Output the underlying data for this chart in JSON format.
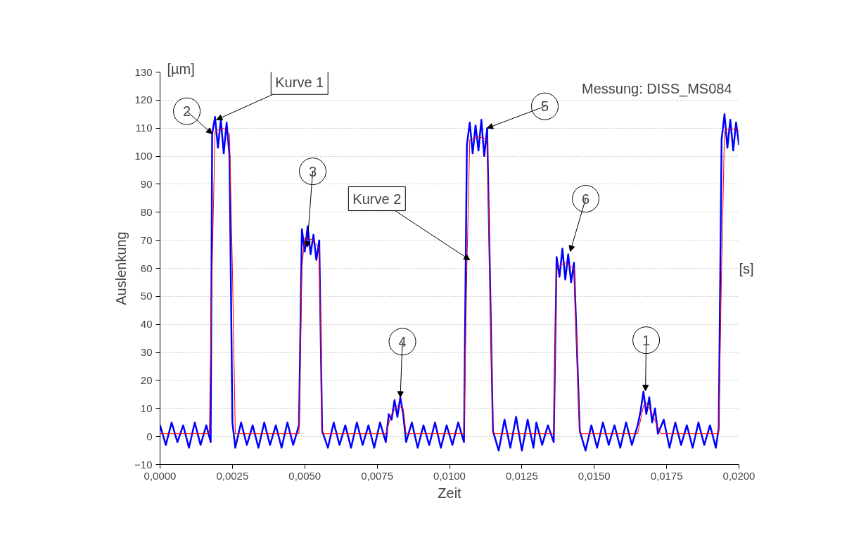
{
  "chart_data": {
    "type": "line",
    "xlabel": "Zeit",
    "ylabel": "Auslenkung",
    "series": [
      {
        "color": "#0000ff",
        "x": [
          0,
          0.0002,
          0.0004,
          0.0006,
          0.0008,
          0.001,
          0.0012,
          0.0014,
          0.0016,
          0.00175,
          0.0018,
          0.0019,
          0.002,
          0.0021,
          0.0022,
          0.0023,
          0.0024,
          0.0025,
          0.0026,
          0.0028,
          0.003,
          0.0032,
          0.0034,
          0.0036,
          0.0038,
          0.004,
          0.0042,
          0.0044,
          0.0046,
          0.0048,
          0.0049,
          0.005,
          0.0051,
          0.0052,
          0.0053,
          0.0054,
          0.0055,
          0.0056,
          0.0058,
          0.006,
          0.0062,
          0.0064,
          0.0066,
          0.0068,
          0.007,
          0.0072,
          0.0074,
          0.0076,
          0.0078,
          0.0079,
          0.008,
          0.0081,
          0.0082,
          0.0083,
          0.0084,
          0.0085,
          0.0087,
          0.0089,
          0.0091,
          0.0093,
          0.0095,
          0.0097,
          0.0099,
          0.0101,
          0.0103,
          0.0105,
          0.0106,
          0.0107,
          0.0108,
          0.0109,
          0.011,
          0.0111,
          0.0112,
          0.0113,
          0.0115,
          0.0117,
          0.0119,
          0.0121,
          0.0123,
          0.0125,
          0.0127,
          0.0129,
          0.013,
          0.0132,
          0.0134,
          0.0136,
          0.0137,
          0.0138,
          0.0139,
          0.014,
          0.0141,
          0.0142,
          0.0143,
          0.0145,
          0.0147,
          0.0149,
          0.0151,
          0.0153,
          0.0155,
          0.0157,
          0.0159,
          0.0161,
          0.0163,
          0.0165,
          0.0166,
          0.0167,
          0.0168,
          0.0169,
          0.017,
          0.0171,
          0.0172,
          0.0174,
          0.0176,
          0.0178,
          0.018,
          0.0182,
          0.0184,
          0.0186,
          0.0188,
          0.019,
          0.0192,
          0.0193,
          0.0194,
          0.0195,
          0.0196,
          0.0197,
          0.0198,
          0.0199,
          0.02
        ],
        "values": [
          4,
          -3,
          5,
          -2,
          4,
          -4,
          5,
          -3,
          4,
          -2,
          108,
          114,
          103,
          113,
          101,
          112,
          100,
          5,
          -4,
          5,
          -3,
          4,
          -4,
          5,
          -3,
          4,
          -4,
          5,
          -3,
          4,
          74,
          66,
          75,
          65,
          72,
          63,
          70,
          2,
          -4,
          5,
          -3,
          4,
          -4,
          5,
          -3,
          4,
          -4,
          5,
          -2,
          8,
          6,
          13,
          7,
          14,
          8,
          -2,
          5,
          -4,
          4,
          -3,
          5,
          -4,
          4,
          -3,
          5,
          -2,
          104,
          112,
          101,
          111,
          102,
          113,
          100,
          110,
          2,
          -5,
          6,
          -4,
          7,
          -5,
          6,
          -4,
          5,
          -3,
          4,
          -2,
          64,
          57,
          67,
          56,
          65,
          55,
          62,
          2,
          -5,
          4,
          -4,
          5,
          -3,
          4,
          -4,
          5,
          -3,
          4,
          9,
          16,
          8,
          14,
          5,
          10,
          1,
          6,
          -4,
          5,
          -3,
          4,
          -4,
          5,
          -3,
          4,
          -4,
          3,
          106,
          115,
          103,
          113,
          102,
          112,
          104
        ]
      },
      {
        "color": "#ff0000",
        "x": [
          0,
          0.0017,
          0.0018,
          0.0019,
          0.0022,
          0.0024,
          0.0025,
          0.0026,
          0.0048,
          0.0049,
          0.005,
          0.0053,
          0.0055,
          0.0056,
          0.0078,
          0.008,
          0.0082,
          0.0084,
          0.0085,
          0.0105,
          0.0106,
          0.0107,
          0.011,
          0.0113,
          0.0115,
          0.0136,
          0.0137,
          0.0138,
          0.014,
          0.0143,
          0.0145,
          0.0165,
          0.0167,
          0.0168,
          0.017,
          0.0173,
          0.0193,
          0.0194,
          0.0195,
          0.0197,
          0.02
        ],
        "values": [
          1,
          1,
          60,
          109,
          110,
          108,
          60,
          1,
          1,
          60,
          71,
          70,
          67,
          1,
          1,
          8,
          11,
          10,
          1,
          1,
          60,
          106,
          107,
          106,
          1,
          1,
          60,
          61,
          62,
          60,
          1,
          1,
          11,
          12,
          8,
          1,
          1,
          60,
          109,
          110,
          109
        ]
      }
    ],
    "xlim": [
      0,
      0.02
    ],
    "xticks": [
      {
        "value": 0,
        "label": "0,0000"
      },
      {
        "value": 0.0025,
        "label": "0,0025"
      },
      {
        "value": 0.005,
        "label": "0,0050"
      },
      {
        "value": 0.0075,
        "label": "0,0075"
      },
      {
        "value": 0.01,
        "label": "0,0100"
      },
      {
        "value": 0.0125,
        "label": "0,0125"
      },
      {
        "value": 0.015,
        "label": "0,0150"
      },
      {
        "value": 0.0175,
        "label": "0,0175"
      },
      {
        "value": 0.02,
        "label": "0,0200"
      }
    ],
    "ylim": [
      -10,
      130
    ],
    "yticks": [
      -10,
      0,
      10,
      20,
      30,
      40,
      50,
      60,
      70,
      80,
      90,
      100,
      110,
      120,
      130
    ],
    "grid": "y",
    "annotations": [
      "Messung: DISS_MS084",
      "[µm]",
      "[s]",
      {
        "text": "Kurve 1",
        "x": 0.00195,
        "y": 113
      },
      {
        "text": "Kurve 2",
        "x": 0.0107,
        "y": 63
      },
      {
        "text": "2",
        "x": 0.0018,
        "y": 108
      },
      {
        "text": "3",
        "x": 0.00508,
        "y": 67.5
      },
      {
        "text": "4",
        "x": 0.0083,
        "y": 14
      },
      {
        "text": "5",
        "x": 0.0113,
        "y": 110
      },
      {
        "text": "6",
        "x": 0.01417,
        "y": 66
      },
      {
        "text": "1",
        "x": 0.01677,
        "y": 16.3
      }
    ]
  }
}
